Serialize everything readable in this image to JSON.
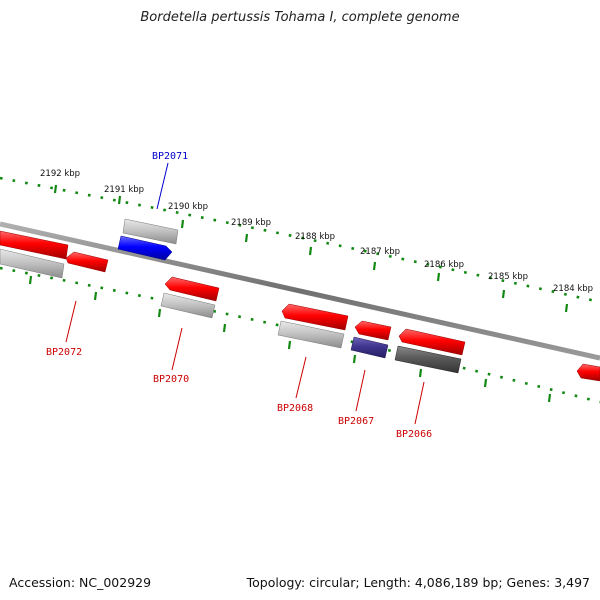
{
  "title": "Bordetella pertussis Tohama I, complete genome",
  "footer": {
    "accession": "Accession: NC_002929",
    "summary": "Topology: circular; Length: 4,086,189 bp; Genes: 3,497"
  },
  "scale_labels": [
    "2192 kbp",
    "2191 kbp",
    "2190 kbp",
    "2189 kbp",
    "2188 kbp",
    "2187 kbp",
    "2186 kbp",
    "2185 kbp",
    "2184 kbp"
  ],
  "gene_labels": [
    {
      "name": "BP2071",
      "color": "#0000cc"
    },
    {
      "name": "BP2072",
      "color": "#cc0000"
    },
    {
      "name": "BP2070",
      "color": "#cc0000"
    },
    {
      "name": "BP2068",
      "color": "#cc0000"
    },
    {
      "name": "BP2067",
      "color": "#cc0000"
    },
    {
      "name": "BP2066",
      "color": "#cc0000"
    }
  ],
  "colors": {
    "forward_gene": "#ff0000",
    "highlight_gene": "#0000ff",
    "grey_gene": "#c0c0c0",
    "dark_gene": "#505050",
    "purple_gene": "#3a2f80",
    "tick": "#118811",
    "backbone": "#808080"
  }
}
